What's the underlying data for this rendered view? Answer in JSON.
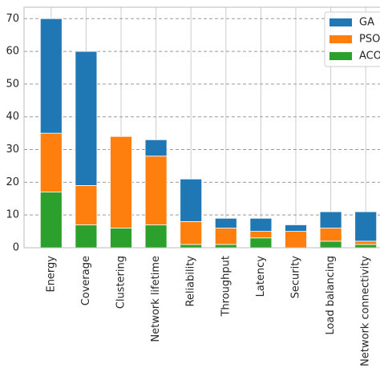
{
  "chart_data": {
    "type": "stacked_bar",
    "categories": [
      "Energy",
      "Coverage",
      "Clustering",
      "Network lifetime",
      "Reliability",
      "Throughput",
      "Latency",
      "Security",
      "Load balancing",
      "Network connectivity"
    ],
    "series": [
      {
        "name": "ACO",
        "color": "#2ca02c",
        "values": [
          17,
          7,
          6,
          7,
          1,
          1,
          3,
          0,
          2,
          1
        ]
      },
      {
        "name": "PSO",
        "color": "#ff7f0e",
        "values": [
          18,
          12,
          28,
          21,
          7,
          5,
          2,
          5,
          4,
          1
        ]
      },
      {
        "name": "GA",
        "color": "#1f77b4",
        "values": [
          35,
          41,
          0,
          5,
          13,
          3,
          4,
          2,
          5,
          9
        ]
      }
    ],
    "ylim": [
      0,
      73.5
    ],
    "yticks": [
      0,
      10,
      20,
      30,
      40,
      50,
      60,
      70
    ],
    "grid": true,
    "legend": "upper right"
  }
}
